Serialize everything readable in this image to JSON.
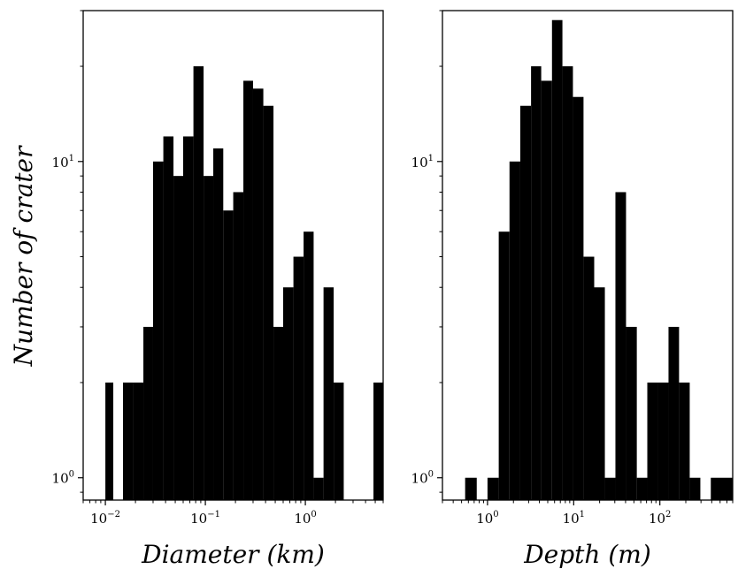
{
  "chart_data": [
    {
      "type": "bar",
      "title": "",
      "xlabel": "Diameter (km)",
      "ylabel": "Number of crater",
      "xscale": "log",
      "yscale": "log",
      "xlim": [
        0.006,
        6
      ],
      "ylim": [
        0.85,
        30
      ],
      "grid": false,
      "legend": "none",
      "bar_color": "#000000",
      "x_ticks": [
        {
          "base": "10",
          "exp": "−2",
          "value": 0.01
        },
        {
          "base": "10",
          "exp": "−1",
          "value": 0.1
        },
        {
          "base": "10",
          "exp": "0",
          "value": 1
        }
      ],
      "y_ticks": [
        {
          "base": "10",
          "exp": "0",
          "value": 1
        },
        {
          "base": "10",
          "exp": "1",
          "value": 10
        }
      ],
      "bins": [
        {
          "x0": 0.01,
          "x1": 0.012,
          "count": 2
        },
        {
          "x0": 0.015,
          "x1": 0.019,
          "count": 2
        },
        {
          "x0": 0.019,
          "x1": 0.024,
          "count": 2
        },
        {
          "x0": 0.024,
          "x1": 0.03,
          "count": 3
        },
        {
          "x0": 0.03,
          "x1": 0.038,
          "count": 10
        },
        {
          "x0": 0.038,
          "x1": 0.048,
          "count": 12
        },
        {
          "x0": 0.048,
          "x1": 0.06,
          "count": 9
        },
        {
          "x0": 0.06,
          "x1": 0.076,
          "count": 12
        },
        {
          "x0": 0.076,
          "x1": 0.096,
          "count": 20
        },
        {
          "x0": 0.096,
          "x1": 0.12,
          "count": 9
        },
        {
          "x0": 0.12,
          "x1": 0.151,
          "count": 11
        },
        {
          "x0": 0.151,
          "x1": 0.19,
          "count": 7
        },
        {
          "x0": 0.19,
          "x1": 0.24,
          "count": 8
        },
        {
          "x0": 0.24,
          "x1": 0.3,
          "count": 18
        },
        {
          "x0": 0.3,
          "x1": 0.38,
          "count": 17
        },
        {
          "x0": 0.38,
          "x1": 0.48,
          "count": 15
        },
        {
          "x0": 0.48,
          "x1": 0.6,
          "count": 3
        },
        {
          "x0": 0.6,
          "x1": 0.76,
          "count": 4
        },
        {
          "x0": 0.76,
          "x1": 0.96,
          "count": 5
        },
        {
          "x0": 0.96,
          "x1": 1.21,
          "count": 6
        },
        {
          "x0": 1.21,
          "x1": 1.52,
          "count": 1
        },
        {
          "x0": 1.52,
          "x1": 1.92,
          "count": 4
        },
        {
          "x0": 1.92,
          "x1": 2.42,
          "count": 2
        },
        {
          "x0": 4.8,
          "x1": 6.0,
          "count": 2
        }
      ]
    },
    {
      "type": "bar",
      "title": "",
      "xlabel": "Depth (m)",
      "ylabel": "",
      "xscale": "log",
      "yscale": "log",
      "xlim": [
        0.3,
        700
      ],
      "ylim": [
        0.85,
        30
      ],
      "grid": false,
      "legend": "none",
      "bar_color": "#000000",
      "x_ticks": [
        {
          "base": "10",
          "exp": "0",
          "value": 1
        },
        {
          "base": "10",
          "exp": "1",
          "value": 10
        },
        {
          "base": "10",
          "exp": "2",
          "value": 100
        }
      ],
      "y_ticks": [
        {
          "base": "10",
          "exp": "0",
          "value": 1
        },
        {
          "base": "10",
          "exp": "1",
          "value": 10
        }
      ],
      "bins": [
        {
          "x0": 0.55,
          "x1": 0.75,
          "count": 1
        },
        {
          "x0": 1.0,
          "x1": 1.35,
          "count": 1
        },
        {
          "x0": 1.35,
          "x1": 1.8,
          "count": 6
        },
        {
          "x0": 1.8,
          "x1": 2.4,
          "count": 10
        },
        {
          "x0": 2.4,
          "x1": 3.2,
          "count": 15
        },
        {
          "x0": 3.2,
          "x1": 4.2,
          "count": 20
        },
        {
          "x0": 4.2,
          "x1": 5.6,
          "count": 18
        },
        {
          "x0": 5.6,
          "x1": 7.4,
          "count": 28
        },
        {
          "x0": 7.4,
          "x1": 9.8,
          "count": 20
        },
        {
          "x0": 9.8,
          "x1": 13.0,
          "count": 16
        },
        {
          "x0": 13.0,
          "x1": 17.3,
          "count": 5
        },
        {
          "x0": 17.3,
          "x1": 23.0,
          "count": 4
        },
        {
          "x0": 23.0,
          "x1": 30.5,
          "count": 1
        },
        {
          "x0": 30.5,
          "x1": 40.5,
          "count": 8
        },
        {
          "x0": 40.5,
          "x1": 54.0,
          "count": 3
        },
        {
          "x0": 54.0,
          "x1": 71.5,
          "count": 1
        },
        {
          "x0": 71.5,
          "x1": 95.0,
          "count": 2
        },
        {
          "x0": 95.0,
          "x1": 126.0,
          "count": 2
        },
        {
          "x0": 126.0,
          "x1": 167.0,
          "count": 3
        },
        {
          "x0": 167.0,
          "x1": 222.0,
          "count": 2
        },
        {
          "x0": 222.0,
          "x1": 295.0,
          "count": 1
        },
        {
          "x0": 390.0,
          "x1": 700.0,
          "count": 1
        }
      ]
    }
  ]
}
